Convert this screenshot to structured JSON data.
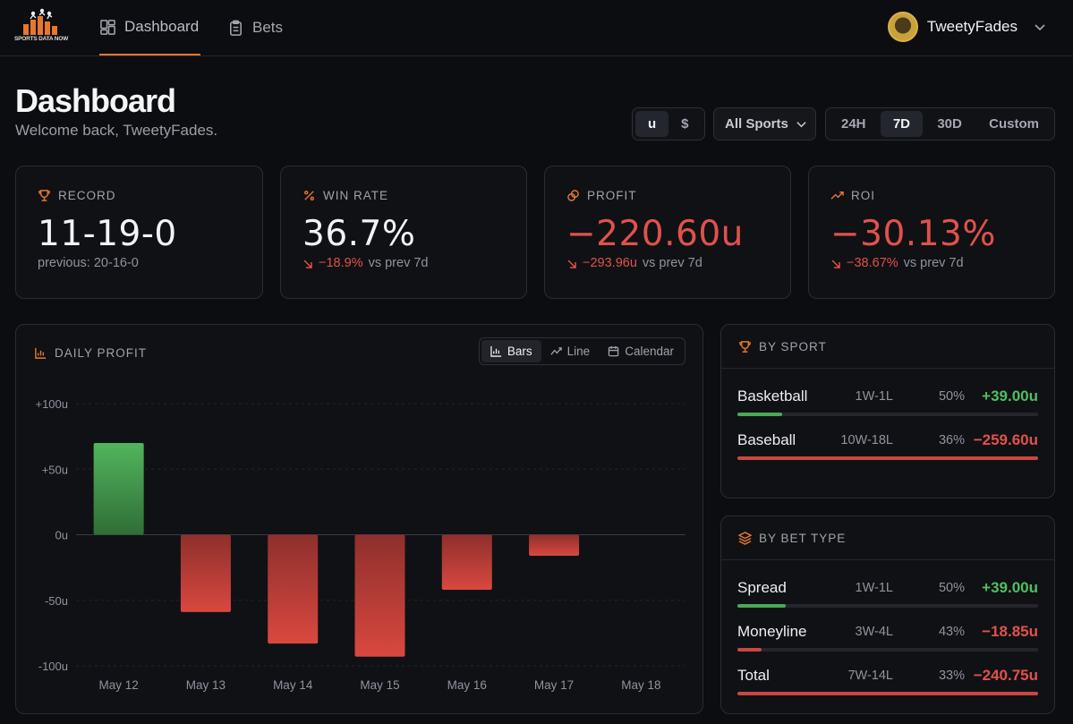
{
  "brand": {
    "logo_text": "SPORTS DATA NOW"
  },
  "nav": {
    "dashboard": "Dashboard",
    "bets": "Bets"
  },
  "user": {
    "name": "TweetyFades"
  },
  "header": {
    "title": "Dashboard",
    "subtitle": "Welcome back, TweetyFades."
  },
  "units_toggle": {
    "options": [
      "u",
      "$"
    ],
    "selected": "u"
  },
  "sport_filter": {
    "value": "All Sports"
  },
  "range": {
    "options": [
      "24H",
      "7D",
      "30D",
      "Custom"
    ],
    "selected": "7D"
  },
  "stats": [
    {
      "label": "RECORD",
      "icon": "trophy-icon",
      "value": "11-19-0",
      "sub": "previous: 20-16-0",
      "delta": "",
      "negative": false
    },
    {
      "label": "WIN RATE",
      "icon": "percent-icon",
      "value": "36.7%",
      "sub": "vs prev 7d",
      "delta": "−18.9%",
      "negative": false
    },
    {
      "label": "PROFIT",
      "icon": "coins-icon",
      "value": "−220.60u",
      "sub": "vs prev 7d",
      "delta": "−293.96u",
      "negative": true
    },
    {
      "label": "ROI",
      "icon": "trending-up-icon",
      "value": "−30.13%",
      "sub": "vs prev 7d",
      "delta": "−38.67%",
      "negative": true
    }
  ],
  "daily_profit": {
    "label": "DAILY PROFIT",
    "views": [
      "Bars",
      "Line",
      "Calendar"
    ],
    "selected_view": "Bars"
  },
  "chart_data": {
    "type": "bar",
    "title": "DAILY PROFIT",
    "categories": [
      "May 12",
      "May 13",
      "May 14",
      "May 15",
      "May 16",
      "May 17",
      "May 18"
    ],
    "values": [
      70,
      -59,
      -83,
      -93,
      -42,
      -16,
      0
    ],
    "yticks": [
      "+100u",
      "+50u",
      "0u",
      "-50u",
      "-100u"
    ],
    "ytick_values": [
      100,
      50,
      0,
      -50,
      -100
    ],
    "ylim": [
      -100,
      100
    ],
    "grid": true,
    "colors": {
      "positive": "#4fbf5f",
      "negative": "#e0524a"
    }
  },
  "by_sport": {
    "label": "BY SPORT",
    "rows": [
      {
        "name": "Basketball",
        "record": "1W-1L",
        "pct": "50%",
        "amount": "+39.00u",
        "positive": true,
        "share": 0.15
      },
      {
        "name": "Baseball",
        "record": "10W-18L",
        "pct": "36%",
        "amount": "−259.60u",
        "positive": false,
        "share": 1.0
      }
    ]
  },
  "by_bet_type": {
    "label": "BY BET TYPE",
    "rows": [
      {
        "name": "Spread",
        "record": "1W-1L",
        "pct": "50%",
        "amount": "+39.00u",
        "positive": true,
        "share": 0.16
      },
      {
        "name": "Moneyline",
        "record": "3W-4L",
        "pct": "43%",
        "amount": "−18.85u",
        "positive": false,
        "share": 0.08
      },
      {
        "name": "Total",
        "record": "7W-14L",
        "pct": "33%",
        "amount": "−240.75u",
        "positive": false,
        "share": 1.0
      }
    ]
  }
}
